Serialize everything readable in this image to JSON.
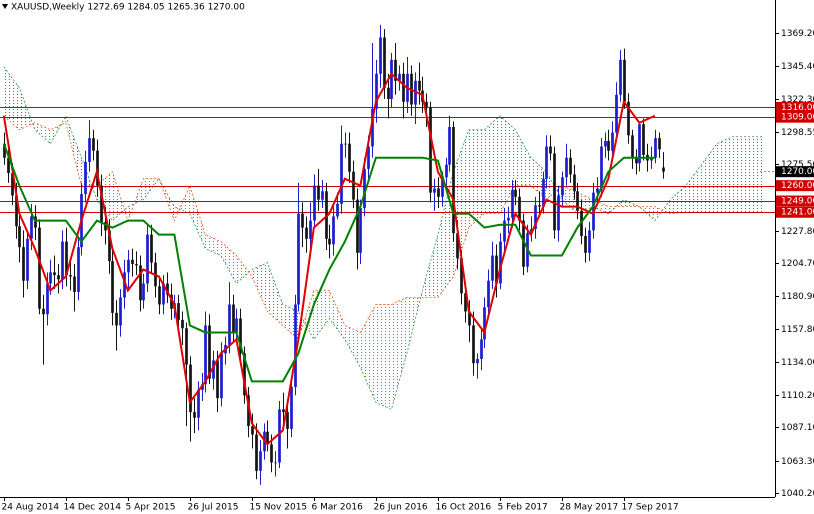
{
  "chart_data": {
    "type": "candlestick",
    "title": "XAUUSD,Weekly  1272.69 1284.05 1265.36 1270.00",
    "xlim": [
      -1,
      199
    ],
    "ylim": [
      1037.3,
      1392.8
    ],
    "xticks": [
      {
        "value": 0,
        "label": "24 Aug 2014"
      },
      {
        "value": 16,
        "label": "14 Dec 2014"
      },
      {
        "value": 32,
        "label": "5 Apr 2015"
      },
      {
        "value": 48,
        "label": "26 Jul 2015"
      },
      {
        "value": 64,
        "label": "15 Nov 2015"
      },
      {
        "value": 80,
        "label": "6 Mar 2016"
      },
      {
        "value": 96,
        "label": "26 Jun 2016"
      },
      {
        "value": 112,
        "label": "16 Oct 2016"
      },
      {
        "value": 128,
        "label": "5 Feb 2017"
      },
      {
        "value": 144,
        "label": "28 May 2017"
      },
      {
        "value": 160,
        "label": "17 Sep 2017"
      }
    ],
    "yticks": [
      {
        "value": 1369.2,
        "label": "1369.20"
      },
      {
        "value": 1345.4,
        "label": "1345.40"
      },
      {
        "value": 1322.3,
        "label": "1322.30"
      },
      {
        "value": 1298.55,
        "label": "1298.55"
      },
      {
        "value": 1275.5,
        "label": "1275.50"
      },
      {
        "value": 1227.8,
        "label": "1227.80"
      },
      {
        "value": 1204.7,
        "label": "1204.70"
      },
      {
        "value": 1180.9,
        "label": "1180.90"
      },
      {
        "value": 1157.8,
        "label": "1157.80"
      },
      {
        "value": 1134,
        "label": "1134.00"
      },
      {
        "value": 1110.2,
        "label": "1110.20"
      },
      {
        "value": 1087.1,
        "label": "1087.10"
      },
      {
        "value": 1063.3,
        "label": "1063.30"
      },
      {
        "value": 1040.2,
        "label": "1040.20"
      }
    ],
    "bull_color": "#1c1cd0",
    "bear_color": "#141414",
    "open": [
      1290,
      1280,
      1269,
      1253,
      1231,
      1216,
      1192,
      1222,
      1238,
      1230,
      1172,
      1168,
      1190,
      1198,
      1196,
      1193,
      1220,
      1196,
      1195,
      1184,
      1216,
      1254,
      1277,
      1294,
      1285,
      1260,
      1234,
      1228,
      1206,
      1169,
      1160,
      1180,
      1198,
      1207,
      1204,
      1203,
      1178,
      1190,
      1225,
      1205,
      1188,
      1175,
      1190,
      1182,
      1172,
      1176,
      1164,
      1158,
      1132,
      1098,
      1094,
      1114,
      1118,
      1160,
      1122,
      1135,
      1108,
      1140,
      1146,
      1175,
      1155,
      1165,
      1140,
      1110,
      1088,
      1082,
      1056,
      1070,
      1084,
      1075,
      1062,
      1062,
      1100,
      1098,
      1086,
      1116,
      1175,
      1240,
      1230,
      1222,
      1235,
      1260,
      1250,
      1256,
      1222,
      1218,
      1238,
      1247,
      1290,
      1290,
      1270,
      1250,
      1212,
      1244,
      1272,
      1288,
      1315,
      1340,
      1366,
      1330,
      1322,
      1350,
      1335,
      1340,
      1320,
      1340,
      1318,
      1335,
      1328,
      1320,
      1316,
      1255,
      1258,
      1252,
      1266,
      1275,
      1302,
      1226,
      1208,
      1183,
      1170,
      1160,
      1133,
      1136,
      1150,
      1173,
      1192,
      1210,
      1190,
      1220,
      1235,
      1237,
      1257,
      1252,
      1235,
      1202,
      1226,
      1229,
      1246,
      1245,
      1265,
      1288,
      1283,
      1228,
      1253,
      1266,
      1280,
      1268,
      1256,
      1242,
      1224,
      1212,
      1228,
      1255,
      1258,
      1288,
      1292,
      1285,
      1298,
      1325,
      1350,
      1320,
      1296,
      1280,
      1276,
      1304,
      1282,
      1278,
      1280,
      1294,
      1273
    ],
    "high": [
      1298,
      1291,
      1276,
      1262,
      1240,
      1228,
      1228,
      1247,
      1246,
      1236,
      1182,
      1198,
      1207,
      1210,
      1204,
      1228,
      1230,
      1206,
      1204,
      1222,
      1262,
      1285,
      1307,
      1300,
      1293,
      1268,
      1245,
      1236,
      1214,
      1178,
      1186,
      1207,
      1214,
      1215,
      1213,
      1210,
      1197,
      1232,
      1232,
      1212,
      1194,
      1196,
      1198,
      1190,
      1182,
      1182,
      1170,
      1162,
      1138,
      1108,
      1120,
      1126,
      1170,
      1168,
      1142,
      1142,
      1148,
      1152,
      1191,
      1182,
      1172,
      1172,
      1145,
      1116,
      1097,
      1090,
      1078,
      1090,
      1092,
      1082,
      1070,
      1106,
      1112,
      1104,
      1120,
      1182,
      1262,
      1248,
      1238,
      1248,
      1268,
      1272,
      1264,
      1262,
      1232,
      1245,
      1255,
      1303,
      1298,
      1298,
      1278,
      1258,
      1250,
      1280,
      1296,
      1362,
      1350,
      1375,
      1372,
      1340,
      1355,
      1362,
      1346,
      1348,
      1352,
      1346,
      1341,
      1348,
      1338,
      1326,
      1320,
      1265,
      1266,
      1270,
      1280,
      1310,
      1306,
      1235,
      1214,
      1188,
      1178,
      1170,
      1140,
      1158,
      1180,
      1200,
      1220,
      1218,
      1226,
      1244,
      1245,
      1264,
      1264,
      1258,
      1240,
      1232,
      1238,
      1252,
      1256,
      1270,
      1296,
      1296,
      1288,
      1260,
      1270,
      1290,
      1286,
      1275,
      1262,
      1250,
      1230,
      1234,
      1262,
      1266,
      1294,
      1298,
      1300,
      1306,
      1334,
      1357,
      1358,
      1326,
      1300,
      1286,
      1306,
      1308,
      1290,
      1288,
      1300,
      1298,
      1284
    ],
    "low": [
      1275,
      1262,
      1246,
      1222,
      1205,
      1180,
      1186,
      1214,
      1221,
      1168,
      1132,
      1160,
      1182,
      1186,
      1183,
      1186,
      1188,
      1185,
      1170,
      1178,
      1210,
      1248,
      1270,
      1278,
      1252,
      1224,
      1218,
      1197,
      1160,
      1142,
      1152,
      1172,
      1185,
      1195,
      1196,
      1170,
      1172,
      1184,
      1198,
      1180,
      1168,
      1168,
      1176,
      1164,
      1165,
      1158,
      1146,
      1088,
      1077,
      1083,
      1085,
      1106,
      1112,
      1118,
      1114,
      1098,
      1102,
      1132,
      1140,
      1148,
      1148,
      1136,
      1104,
      1080,
      1072,
      1050,
      1046,
      1064,
      1070,
      1055,
      1052,
      1058,
      1090,
      1072,
      1080,
      1110,
      1170,
      1216,
      1212,
      1215,
      1230,
      1242,
      1244,
      1214,
      1208,
      1210,
      1236,
      1240,
      1280,
      1262,
      1244,
      1200,
      1204,
      1238,
      1265,
      1280,
      1305,
      1330,
      1322,
      1308,
      1316,
      1325,
      1328,
      1308,
      1312,
      1310,
      1304,
      1318,
      1312,
      1302,
      1248,
      1242,
      1244,
      1245,
      1258,
      1270,
      1220,
      1200,
      1175,
      1162,
      1148,
      1124,
      1122,
      1128,
      1144,
      1168,
      1186,
      1180,
      1186,
      1212,
      1226,
      1230,
      1246,
      1228,
      1196,
      1198,
      1220,
      1222,
      1238,
      1240,
      1258,
      1278,
      1222,
      1220,
      1245,
      1260,
      1262,
      1250,
      1236,
      1218,
      1205,
      1206,
      1222,
      1248,
      1252,
      1280,
      1278,
      1280,
      1292,
      1320,
      1315,
      1290,
      1272,
      1268,
      1270,
      1278,
      1270,
      1272,
      1276,
      1280,
      1265
    ],
    "close": [
      1280,
      1269,
      1253,
      1231,
      1216,
      1192,
      1222,
      1238,
      1230,
      1172,
      1168,
      1190,
      1198,
      1196,
      1193,
      1220,
      1196,
      1195,
      1184,
      1216,
      1254,
      1277,
      1294,
      1285,
      1260,
      1234,
      1228,
      1206,
      1169,
      1160,
      1180,
      1198,
      1207,
      1204,
      1203,
      1178,
      1190,
      1225,
      1205,
      1188,
      1175,
      1190,
      1182,
      1172,
      1176,
      1164,
      1158,
      1132,
      1098,
      1094,
      1114,
      1118,
      1160,
      1122,
      1135,
      1108,
      1140,
      1146,
      1175,
      1155,
      1165,
      1140,
      1110,
      1088,
      1082,
      1056,
      1070,
      1084,
      1075,
      1062,
      1062,
      1100,
      1098,
      1086,
      1116,
      1175,
      1240,
      1230,
      1222,
      1235,
      1260,
      1250,
      1256,
      1222,
      1218,
      1238,
      1247,
      1290,
      1290,
      1270,
      1250,
      1212,
      1244,
      1272,
      1288,
      1315,
      1340,
      1366,
      1330,
      1322,
      1350,
      1335,
      1340,
      1320,
      1340,
      1318,
      1335,
      1328,
      1320,
      1316,
      1255,
      1258,
      1252,
      1266,
      1275,
      1302,
      1226,
      1208,
      1183,
      1170,
      1160,
      1133,
      1136,
      1150,
      1173,
      1192,
      1210,
      1190,
      1220,
      1235,
      1237,
      1257,
      1252,
      1235,
      1202,
      1226,
      1229,
      1246,
      1245,
      1265,
      1288,
      1283,
      1228,
      1253,
      1266,
      1280,
      1268,
      1256,
      1242,
      1224,
      1212,
      1228,
      1255,
      1258,
      1288,
      1292,
      1285,
      1298,
      1325,
      1350,
      1320,
      1296,
      1280,
      1276,
      1304,
      1282,
      1278,
      1280,
      1294,
      1286,
      1270
    ],
    "lines": [
      {
        "color": "#e00000",
        "x": [
          0,
          4,
          8,
          12,
          16,
          20,
          24,
          28,
          32,
          36,
          40,
          44,
          48,
          52,
          56,
          60,
          64,
          68,
          72,
          76,
          80,
          84,
          88,
          92,
          96,
          100,
          104,
          108,
          112,
          116,
          120,
          124,
          128,
          132,
          136,
          140,
          144,
          148,
          152,
          156,
          160,
          164,
          168
        ],
        "values": [
          1310,
          1240,
          1215,
          1185,
          1195,
          1235,
          1270,
          1215,
          1185,
          1200,
          1195,
          1175,
          1105,
          1120,
          1140,
          1150,
          1090,
          1075,
          1085,
          1150,
          1230,
          1240,
          1265,
          1260,
          1320,
          1340,
          1330,
          1325,
          1270,
          1250,
          1170,
          1155,
          1200,
          1240,
          1225,
          1250,
          1245,
          1245,
          1240,
          1265,
          1320,
          1305,
          1310
        ]
      },
      {
        "color": "#008000",
        "x": [
          0,
          4,
          8,
          12,
          16,
          20,
          24,
          28,
          32,
          36,
          40,
          44,
          48,
          52,
          56,
          60,
          64,
          68,
          72,
          76,
          80,
          84,
          88,
          92,
          96,
          100,
          104,
          108,
          112,
          116,
          120,
          124,
          128,
          132,
          136,
          140,
          144,
          148,
          152,
          156,
          160,
          164,
          168
        ],
        "values": [
          1290,
          1260,
          1235,
          1235,
          1235,
          1220,
          1235,
          1230,
          1235,
          1235,
          1225,
          1225,
          1160,
          1155,
          1155,
          1155,
          1120,
          1120,
          1120,
          1140,
          1175,
          1200,
          1220,
          1245,
          1280,
          1280,
          1280,
          1280,
          1278,
          1240,
          1240,
          1230,
          1232,
          1232,
          1210,
          1210,
          1210,
          1230,
          1245,
          1270,
          1280,
          1280,
          1280
        ]
      }
    ],
    "cloud": {
      "up_color": "#2e8b57",
      "down_color": "#e05a1e",
      "x": [
        0,
        4,
        8,
        12,
        16,
        20,
        24,
        28,
        32,
        36,
        40,
        44,
        48,
        52,
        56,
        60,
        64,
        68,
        72,
        76,
        80,
        84,
        88,
        92,
        96,
        100,
        104,
        108,
        112,
        116,
        120,
        124,
        128,
        132,
        136,
        140,
        144,
        148,
        152,
        156,
        160,
        164,
        168,
        172,
        176,
        180,
        184,
        188,
        192,
        196
      ],
      "span_a": [
        1345,
        1330,
        1300,
        1290,
        1310,
        1280,
        1250,
        1235,
        1245,
        1250,
        1265,
        1245,
        1240,
        1215,
        1210,
        1190,
        1200,
        1205,
        1175,
        1170,
        1150,
        1165,
        1150,
        1130,
        1105,
        1100,
        1140,
        1185,
        1225,
        1270,
        1300,
        1300,
        1310,
        1300,
        1280,
        1270,
        1250,
        1240,
        1245,
        1240,
        1250,
        1245,
        1235,
        1250,
        1260,
        1275,
        1290,
        1295,
        1295,
        1295
      ],
      "span_b": [
        1310,
        1300,
        1305,
        1300,
        1305,
        1260,
        1260,
        1270,
        1235,
        1265,
        1265,
        1235,
        1260,
        1225,
        1220,
        1210,
        1195,
        1170,
        1160,
        1150,
        1185,
        1185,
        1160,
        1155,
        1175,
        1175,
        1180,
        1180,
        1180,
        1195,
        1230,
        1240,
        1240,
        1260,
        1260,
        1250,
        1260,
        1255,
        1250,
        1245,
        1245,
        1245,
        1245,
        1240,
        1241,
        1241,
        1241,
        1241,
        1241,
        1241
      ]
    },
    "levels_color": "#d00000",
    "levels": [
      {
        "value": 1316,
        "label": "1316.00"
      },
      {
        "value": 1309,
        "label": "1309.00"
      },
      {
        "value": 1260,
        "label": "1260.00"
      },
      {
        "value": 1249,
        "label": "1249.00"
      },
      {
        "value": 1241,
        "label": "1241.00"
      }
    ],
    "last_price": {
      "value": 1270,
      "label": "1270.00"
    }
  }
}
